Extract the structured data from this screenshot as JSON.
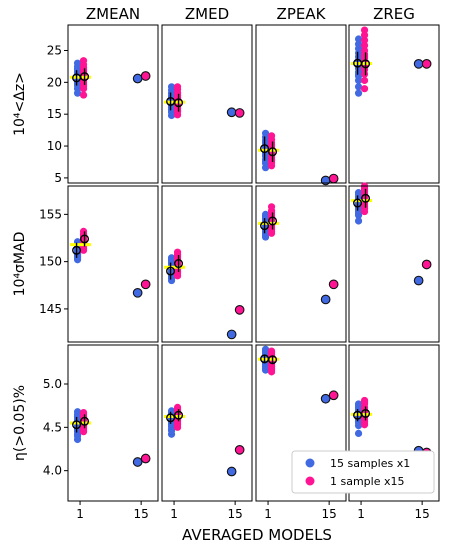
{
  "figure": {
    "xlabel": "AVERAGED MODELS",
    "xticks": [
      "1",
      "15"
    ],
    "column_titles": [
      "ZMEAN",
      "ZMED",
      "ZPEAK",
      "ZREG"
    ],
    "row_ylabels": [
      "10⁴<Δz>",
      "10⁴σMAD",
      "η(>0.05)%"
    ]
  },
  "legend": {
    "entries": [
      {
        "label": "15 samples x1",
        "color": "#4169E1"
      },
      {
        "label": "1 sample x15",
        "color": "#FF1493"
      }
    ]
  },
  "colors": {
    "blue": "#4169E1",
    "pink": "#FF1493",
    "yellow": "#FFFF00"
  },
  "chart_data": {
    "type": "scatter",
    "grid": false,
    "legend_position": "lower-right of bottom-right panel",
    "rows": [
      {
        "ylabel": "10⁴<Δz>",
        "ylim": [
          4.2,
          29
        ],
        "yticks": [
          5,
          10,
          15,
          20,
          25
        ],
        "panels": [
          {
            "title": "ZMEAN",
            "blue_scatter": [
              18.3,
              19.0,
              19.5,
              20.0,
              20.4,
              20.8,
              21.2,
              21.6,
              22.0,
              22.5,
              23.0,
              19.8,
              21.0,
              20.6,
              22.2
            ],
            "pink_scatter": [
              18.0,
              19.0,
              19.7,
              20.3,
              20.8,
              21.3,
              21.8,
              22.3,
              22.8,
              23.4,
              20.0,
              21.0,
              22.0,
              19.4,
              21.6
            ],
            "blue_mean": 20.7,
            "blue_err": 1.2,
            "pink_mean": 20.9,
            "pink_err": 1.3,
            "blue_avg15": 20.6,
            "pink_avg15": 21.0
          },
          {
            "title": "ZMED",
            "blue_scatter": [
              14.8,
              15.3,
              15.8,
              16.3,
              16.8,
              17.3,
              17.8,
              18.3,
              18.8,
              19.3,
              16.0,
              17.0,
              18.0,
              15.5,
              17.5
            ],
            "pink_scatter": [
              14.9,
              15.4,
              15.9,
              16.4,
              16.9,
              17.4,
              17.9,
              18.4,
              18.9,
              19.3,
              16.2,
              17.2,
              18.2,
              15.6,
              17.6
            ],
            "blue_mean": 17.0,
            "blue_err": 1.4,
            "pink_mean": 16.8,
            "pink_err": 1.4,
            "blue_avg15": 15.3,
            "pink_avg15": 15.2
          },
          {
            "title": "ZPEAK",
            "blue_scatter": [
              6.6,
              7.3,
              7.9,
              8.4,
              8.9,
              9.4,
              9.9,
              10.4,
              10.9,
              11.4,
              12.0,
              8.6,
              9.6,
              10.6,
              7.6
            ],
            "pink_scatter": [
              6.9,
              7.4,
              7.9,
              8.5,
              9.0,
              9.5,
              10.0,
              10.5,
              11.0,
              11.6,
              8.2,
              9.2,
              10.2,
              7.7,
              9.7
            ],
            "blue_mean": 9.6,
            "blue_err": 1.9,
            "pink_mean": 9.1,
            "pink_err": 1.6,
            "blue_avg15": 4.6,
            "pink_avg15": 4.9
          },
          {
            "title": "ZREG",
            "blue_scatter": [
              18.3,
              19.3,
              20.3,
              21.0,
              21.6,
              22.2,
              22.8,
              23.4,
              24.0,
              24.6,
              25.3,
              26.0,
              26.8,
              21.2,
              23.1
            ],
            "pink_scatter": [
              19.0,
              20.3,
              21.3,
              22.0,
              22.6,
              23.2,
              23.8,
              24.4,
              25.0,
              25.8,
              26.6,
              27.4,
              28.2,
              22.3,
              24.1
            ],
            "blue_mean": 23.0,
            "blue_err": 1.8,
            "pink_mean": 22.9,
            "pink_err": 1.8,
            "blue_avg15": 22.9,
            "pink_avg15": 22.9
          }
        ]
      },
      {
        "ylabel": "10⁴σMAD",
        "ylim": [
          141.5,
          158
        ],
        "yticks": [
          145,
          150,
          155
        ],
        "panels": [
          {
            "title": "ZMEAN",
            "blue_scatter": [
              150.2,
              150.6,
              150.9,
              151.2,
              151.5,
              151.8,
              152.1,
              150.4,
              151.0,
              151.6,
              150.8,
              151.3,
              151.9,
              150.5,
              151.4
            ],
            "pink_scatter": [
              151.2,
              151.6,
              152.0,
              152.4,
              152.8,
              153.2,
              151.8,
              152.2,
              152.6,
              151.4,
              152.9,
              152.1,
              151.9,
              152.5,
              152.3
            ],
            "blue_mean": 151.2,
            "blue_err": 0.8,
            "pink_mean": 152.4,
            "pink_err": 0.8,
            "blue_avg15": 146.7,
            "pink_avg15": 147.6
          },
          {
            "title": "ZMED",
            "blue_scatter": [
              148.0,
              148.4,
              148.8,
              149.2,
              149.6,
              150.0,
              150.4,
              148.6,
              149.0,
              149.4,
              149.8,
              148.2,
              150.2,
              149.1,
              148.9
            ],
            "pink_scatter": [
              148.5,
              149.0,
              149.4,
              149.8,
              150.2,
              150.6,
              151.0,
              149.2,
              149.6,
              150.0,
              150.4,
              148.8,
              150.8,
              149.9,
              150.1
            ],
            "blue_mean": 149.0,
            "blue_err": 0.9,
            "pink_mean": 149.8,
            "pink_err": 0.9,
            "blue_avg15": 142.3,
            "pink_avg15": 144.9
          },
          {
            "title": "ZPEAK",
            "blue_scatter": [
              152.6,
              153.0,
              153.4,
              153.8,
              154.2,
              154.6,
              155.0,
              153.2,
              153.6,
              154.0,
              154.4,
              152.8,
              154.8,
              153.5,
              153.9
            ],
            "pink_scatter": [
              153.0,
              153.4,
              153.8,
              154.2,
              154.6,
              155.0,
              155.4,
              155.8,
              153.6,
              154.0,
              154.4,
              154.8,
              155.2,
              153.2,
              154.3
            ],
            "blue_mean": 153.8,
            "blue_err": 0.8,
            "pink_mean": 154.3,
            "pink_err": 0.9,
            "blue_avg15": 146.0,
            "pink_avg15": 147.6
          },
          {
            "title": "ZREG",
            "blue_scatter": [
              154.3,
              154.9,
              155.3,
              155.7,
              156.1,
              156.5,
              156.9,
              157.3,
              155.5,
              155.9,
              156.3,
              156.7,
              155.1,
              157.1,
              156.0
            ],
            "pink_scatter": [
              155.3,
              155.8,
              156.2,
              156.6,
              157.0,
              157.4,
              157.8,
              158.0,
              156.0,
              156.4,
              156.8,
              157.2,
              155.6,
              157.6,
              156.9
            ],
            "blue_mean": 156.2,
            "blue_err": 0.8,
            "pink_mean": 156.7,
            "pink_err": 1.0,
            "blue_avg15": 148.0,
            "pink_avg15": 149.7
          }
        ]
      },
      {
        "ylabel": "η(>0.05)%",
        "ylim": [
          3.65,
          5.45
        ],
        "yticks": [
          4.0,
          4.5,
          5.0
        ],
        "panels": [
          {
            "title": "ZMEAN",
            "blue_scatter": [
              4.36,
              4.42,
              4.47,
              4.51,
              4.55,
              4.59,
              4.63,
              4.68,
              4.45,
              4.53,
              4.57,
              4.61,
              4.49,
              4.65,
              4.4
            ],
            "pink_scatter": [
              4.45,
              4.49,
              4.53,
              4.57,
              4.61,
              4.65,
              4.51,
              4.55,
              4.59,
              4.63,
              4.47,
              4.67,
              4.57,
              4.52,
              4.6
            ],
            "blue_mean": 4.53,
            "blue_err": 0.09,
            "pink_mean": 4.57,
            "pink_err": 0.08,
            "blue_avg15": 4.1,
            "pink_avg15": 4.14
          },
          {
            "title": "ZMED",
            "blue_scatter": [
              4.42,
              4.48,
              4.53,
              4.57,
              4.61,
              4.65,
              4.69,
              4.51,
              4.55,
              4.59,
              4.63,
              4.46,
              4.67,
              4.6,
              4.58
            ],
            "pink_scatter": [
              4.5,
              4.55,
              4.59,
              4.63,
              4.67,
              4.71,
              4.57,
              4.61,
              4.65,
              4.69,
              4.53,
              4.73,
              4.62,
              4.66,
              4.6
            ],
            "blue_mean": 4.61,
            "blue_err": 0.07,
            "pink_mean": 4.64,
            "pink_err": 0.07,
            "blue_avg15": 3.99,
            "pink_avg15": 4.24
          },
          {
            "title": "ZPEAK",
            "blue_scatter": [
              5.16,
              5.2,
              5.24,
              5.28,
              5.32,
              5.36,
              5.4,
              5.22,
              5.26,
              5.3,
              5.34,
              5.18,
              5.38,
              5.29,
              5.27
            ],
            "pink_scatter": [
              5.14,
              5.18,
              5.22,
              5.26,
              5.3,
              5.34,
              5.38,
              5.2,
              5.24,
              5.28,
              5.32,
              5.16,
              5.36,
              5.27,
              5.25
            ],
            "blue_mean": 5.29,
            "blue_err": 0.05,
            "pink_mean": 5.28,
            "pink_err": 0.05,
            "blue_avg15": 4.83,
            "pink_avg15": 4.87
          },
          {
            "title": "ZREG",
            "blue_scatter": [
              4.43,
              4.52,
              4.57,
              4.61,
              4.65,
              4.69,
              4.73,
              4.77,
              4.59,
              4.63,
              4.67,
              4.55,
              4.71,
              4.75,
              4.64
            ],
            "pink_scatter": [
              4.53,
              4.57,
              4.61,
              4.65,
              4.69,
              4.73,
              4.77,
              4.81,
              4.59,
              4.63,
              4.67,
              4.71,
              4.55,
              4.79,
              4.66
            ],
            "blue_mean": 4.64,
            "blue_err": 0.07,
            "pink_mean": 4.66,
            "pink_err": 0.08,
            "blue_avg15": 4.23,
            "pink_avg15": 4.21
          }
        ]
      }
    ]
  }
}
